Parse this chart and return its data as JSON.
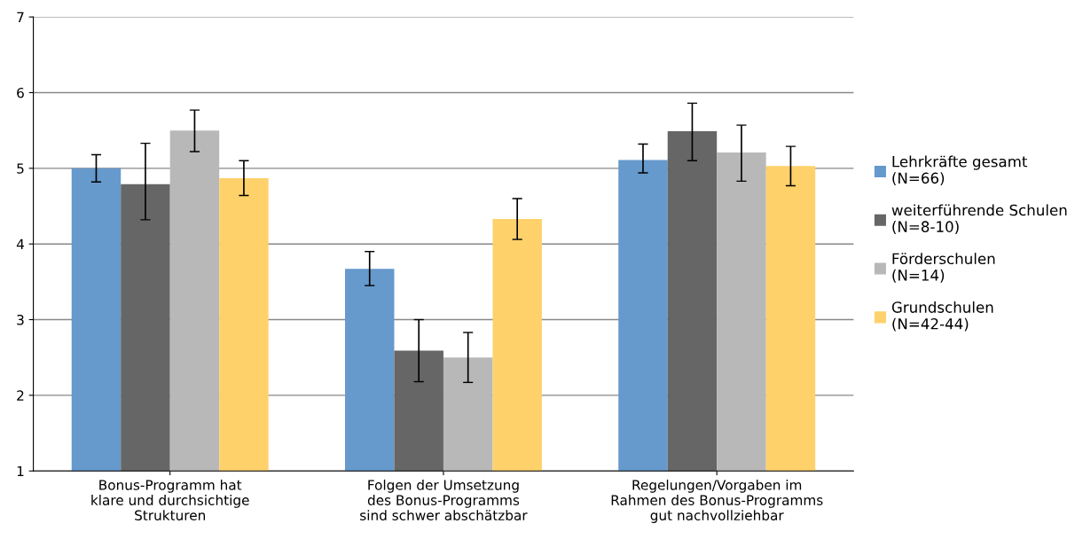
{
  "chart_data": {
    "type": "bar",
    "categories": [
      "Bonus-Programm hat\nklare und durchsichtige\nStrukturen",
      "Folgen der Umsetzung\ndes Bonus-Programms\nsind schwer abschätzbar",
      "Regelungen/Vorgaben im\nRahmen des Bonus-Programms\ngut nachvollziehbar"
    ],
    "series": [
      {
        "name": "Lehrkräfte gesamt\n(N=66)",
        "color": "#6699cc",
        "values": [
          5.0,
          3.67,
          5.11
        ],
        "errors": [
          [
            4.82,
            5.18
          ],
          [
            3.45,
            3.9
          ],
          [
            4.94,
            5.32
          ]
        ]
      },
      {
        "name": "weiterführende Schulen\n(N=8-10)",
        "color": "#666666",
        "values": [
          4.79,
          2.59,
          5.49
        ],
        "errors": [
          [
            4.32,
            5.33
          ],
          [
            2.18,
            3.0
          ],
          [
            5.1,
            5.86
          ]
        ]
      },
      {
        "name": "Förderschulen\n(N=14)",
        "color": "#b8b8b8",
        "values": [
          5.5,
          2.5,
          5.21
        ],
        "errors": [
          [
            5.22,
            5.77
          ],
          [
            2.17,
            2.83
          ],
          [
            4.83,
            5.57
          ]
        ]
      },
      {
        "name": "Grundschulen\n(N=42-44)",
        "color": "#ffd16b",
        "values": [
          4.87,
          4.33,
          5.03
        ],
        "errors": [
          [
            4.64,
            5.1
          ],
          [
            4.06,
            4.6
          ],
          [
            4.77,
            5.29
          ]
        ]
      }
    ],
    "ylim": [
      1,
      7
    ],
    "yticks": [
      1,
      2,
      3,
      4,
      5,
      6,
      7
    ],
    "grid": "y",
    "legend": "right"
  }
}
